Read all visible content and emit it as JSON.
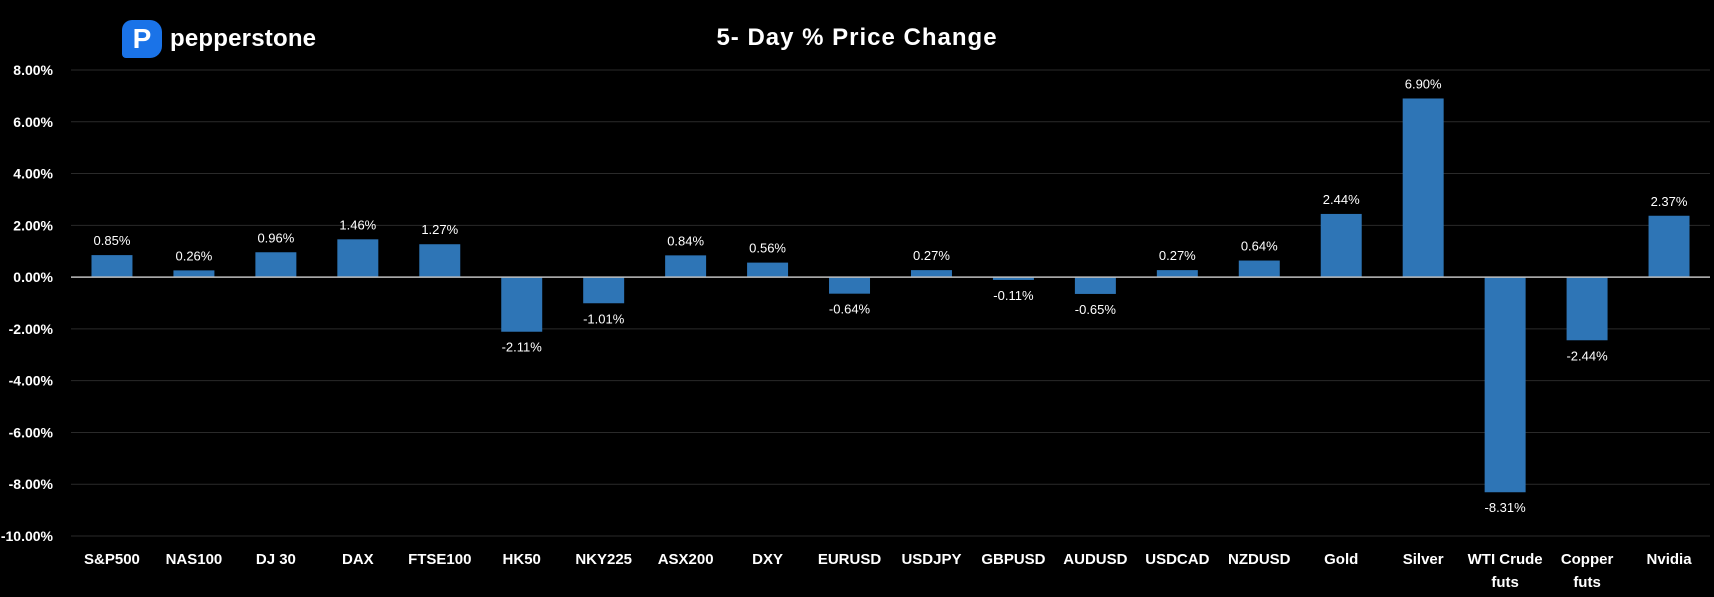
{
  "brand": {
    "logo_letter": "P",
    "name": "pepperstone"
  },
  "colors": {
    "background": "#000000",
    "bar": "#2e75b6",
    "grid": "#2a2a2a",
    "zero_line": "#bfbfbf",
    "brand": "#1a73e8"
  },
  "chart_data": {
    "type": "bar",
    "title": "5- Day % Price Change",
    "categories": [
      "S&P500",
      "NAS100",
      "DJ 30",
      "DAX",
      "FTSE100",
      "HK50",
      "NKY225",
      "ASX200",
      "DXY",
      "EURUSD",
      "USDJPY",
      "GBPUSD",
      "AUDUSD",
      "USDCAD",
      "NZDUSD",
      "Gold",
      "Silver",
      "WTI Crude futs",
      "Copper futs",
      "Nvidia"
    ],
    "category_lines": [
      [
        "S&P500"
      ],
      [
        "NAS100"
      ],
      [
        "DJ 30"
      ],
      [
        "DAX"
      ],
      [
        "FTSE100"
      ],
      [
        "HK50"
      ],
      [
        "NKY225"
      ],
      [
        "ASX200"
      ],
      [
        "DXY"
      ],
      [
        "EURUSD"
      ],
      [
        "USDJPY"
      ],
      [
        "GBPUSD"
      ],
      [
        "AUDUSD"
      ],
      [
        "USDCAD"
      ],
      [
        "NZDUSD"
      ],
      [
        "Gold"
      ],
      [
        "Silver"
      ],
      [
        "WTI Crude",
        "futs"
      ],
      [
        "Copper",
        "futs"
      ],
      [
        "Nvidia"
      ]
    ],
    "values": [
      0.85,
      0.26,
      0.96,
      1.46,
      1.27,
      -2.11,
      -1.01,
      0.84,
      0.56,
      -0.64,
      0.27,
      -0.11,
      -0.65,
      0.27,
      0.64,
      2.44,
      6.9,
      -8.31,
      -2.44,
      2.37
    ],
    "data_labels": [
      "0.85%",
      "0.26%",
      "0.96%",
      "1.46%",
      "1.27%",
      "-2.11%",
      "-1.01%",
      "0.84%",
      "0.56%",
      "-0.64%",
      "0.27%",
      "-0.11%",
      "-0.65%",
      "0.27%",
      "0.64%",
      "2.44%",
      "6.90%",
      "-8.31%",
      "-2.44%",
      "2.37%"
    ],
    "ylim": [
      -10,
      8
    ],
    "yticks": [
      8,
      6,
      4,
      2,
      0,
      -2,
      -4,
      -6,
      -8,
      -10
    ],
    "ytick_labels": [
      "8.00%",
      "6.00%",
      "4.00%",
      "2.00%",
      "0.00%",
      "-2.00%",
      "-4.00%",
      "-6.00%",
      "-8.00%",
      "-10.00%"
    ],
    "grid": true,
    "legend": "none"
  }
}
